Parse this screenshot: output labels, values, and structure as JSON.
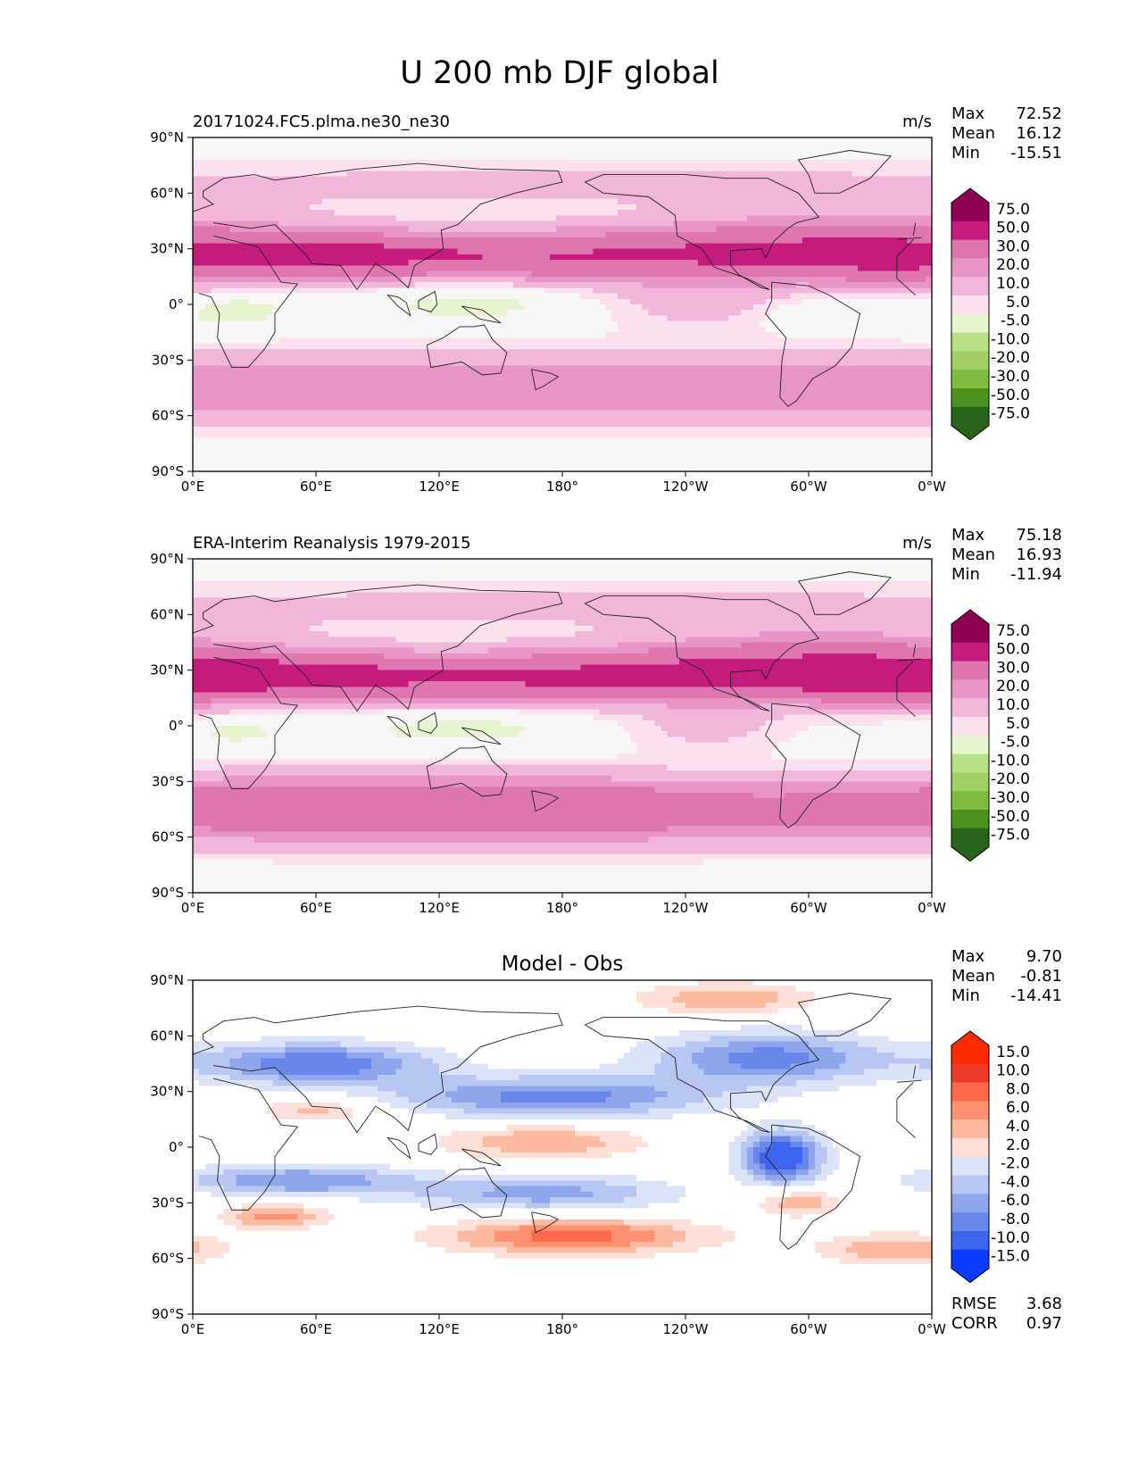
{
  "figure_title": "U 200 mb DJF global",
  "colors": {
    "seq_pos": [
      "#f7f7f7",
      "#fde0ef",
      "#f1b6da",
      "#e795c5",
      "#de77ae",
      "#c51b7d",
      "#8e0152"
    ],
    "seq_neg": [
      "#f7f7f7",
      "#e6f5d0",
      "#b8e186",
      "#a0cf67",
      "#7fbc41",
      "#4d9221",
      "#276419"
    ],
    "div_pos": [
      "#ffffff",
      "#fee0d8",
      "#fcbba1",
      "#fc9272",
      "#fb6a4a",
      "#ef3b2c",
      "#ff2a00"
    ],
    "div_neg": [
      "#ffffff",
      "#dbe3f8",
      "#b7c7f2",
      "#8fa6ec",
      "#6788ea",
      "#3f65ee",
      "#0a3cff"
    ]
  },
  "chart_data": [
    {
      "type": "contour-map",
      "title_left": "20171024.FC5.plma.ne30_ne30",
      "title_center": "",
      "units": "m/s",
      "stats": [
        {
          "label": "Max",
          "value": "72.52"
        },
        {
          "label": "Mean",
          "value": "16.12"
        },
        {
          "label": "Min",
          "value": "-15.51"
        }
      ],
      "extra_stats": [],
      "colorbar": {
        "levels": [
          "75.0",
          "50.0",
          "30.0",
          "20.0",
          "10.0",
          "5.0",
          "-5.0",
          "-10.0",
          "-20.0",
          "-30.0",
          "-50.0",
          "-75.0"
        ],
        "palette": "seq"
      },
      "xticks": [
        "0°E",
        "60°E",
        "120°E",
        "180°",
        "120°W",
        "60°W",
        "0°W"
      ],
      "yticks": [
        "90°N",
        "60°N",
        "30°N",
        "0°",
        "30°S",
        "60°S",
        "90°S"
      ],
      "xlim": [
        0,
        360
      ],
      "ylim": [
        -90,
        90
      ],
      "features": [
        {
          "lon": 180,
          "lat": 26,
          "sl": 200,
          "sa": 10,
          "amp": 48,
          "sign": 1
        },
        {
          "lon": 55,
          "lat": 27,
          "sl": 45,
          "sa": 7,
          "amp": 16,
          "sign": 1
        },
        {
          "lon": 320,
          "lat": 37,
          "sl": 70,
          "sa": 12,
          "amp": 22,
          "sign": 1
        },
        {
          "lon": 345,
          "lat": 18,
          "sl": 30,
          "sa": 10,
          "amp": 14,
          "sign": 1
        },
        {
          "lon": 180,
          "lat": -45,
          "sl": 360,
          "sa": 14,
          "amp": 30,
          "sign": 1
        },
        {
          "lon": 20,
          "lat": -3,
          "sl": 18,
          "sa": 7,
          "amp": 11,
          "sign": -1
        },
        {
          "lon": 135,
          "lat": 2,
          "sl": 35,
          "sa": 8,
          "amp": 10,
          "sign": -1
        },
        {
          "lon": 305,
          "lat": -5,
          "sl": 22,
          "sa": 6,
          "amp": 8,
          "sign": -1
        },
        {
          "lon": 250,
          "lat": 0,
          "sl": 35,
          "sa": 10,
          "amp": 14,
          "sign": 1
        },
        {
          "lon": 180,
          "lat": 65,
          "sl": 360,
          "sa": 10,
          "amp": 12,
          "sign": 1
        }
      ]
    },
    {
      "type": "contour-map",
      "title_left": "ERA-Interim Reanalysis 1979-2015",
      "title_center": "",
      "units": "m/s",
      "stats": [
        {
          "label": "Max",
          "value": "75.18"
        },
        {
          "label": "Mean",
          "value": "16.93"
        },
        {
          "label": "Min",
          "value": "-11.94"
        }
      ],
      "extra_stats": [],
      "colorbar": {
        "levels": [
          "75.0",
          "50.0",
          "30.0",
          "20.0",
          "10.0",
          "5.0",
          "-5.0",
          "-10.0",
          "-20.0",
          "-30.0",
          "-50.0",
          "-75.0"
        ],
        "palette": "seq"
      },
      "xticks": [
        "0°E",
        "60°E",
        "120°E",
        "180°",
        "120°W",
        "60°W",
        "0°W"
      ],
      "yticks": [
        "90°N",
        "60°N",
        "30°N",
        "0°",
        "30°S",
        "60°S",
        "90°S"
      ],
      "xlim": [
        0,
        360
      ],
      "ylim": [
        -90,
        90
      ],
      "features": [
        {
          "lon": 185,
          "lat": 26,
          "sl": 200,
          "sa": 10,
          "amp": 52,
          "sign": 1
        },
        {
          "lon": 40,
          "lat": 27,
          "sl": 40,
          "sa": 7,
          "amp": 18,
          "sign": 1
        },
        {
          "lon": 310,
          "lat": 37,
          "sl": 70,
          "sa": 12,
          "amp": 26,
          "sign": 1
        },
        {
          "lon": 345,
          "lat": 20,
          "sl": 30,
          "sa": 10,
          "amp": 16,
          "sign": 1
        },
        {
          "lon": 100,
          "lat": -42,
          "sl": 150,
          "sa": 12,
          "amp": 26,
          "sign": 1
        },
        {
          "lon": 180,
          "lat": -48,
          "sl": 360,
          "sa": 14,
          "amp": 24,
          "sign": 1
        },
        {
          "lon": 20,
          "lat": -3,
          "sl": 18,
          "sa": 6,
          "amp": 8,
          "sign": -1
        },
        {
          "lon": 130,
          "lat": 0,
          "sl": 40,
          "sa": 8,
          "amp": 9,
          "sign": -1
        },
        {
          "lon": 250,
          "lat": -2,
          "sl": 30,
          "sa": 9,
          "amp": 12,
          "sign": 1
        },
        {
          "lon": 180,
          "lat": 65,
          "sl": 360,
          "sa": 10,
          "amp": 12,
          "sign": 1
        }
      ]
    },
    {
      "type": "contour-map",
      "title_left": "",
      "title_center": "Model - Obs",
      "units": "",
      "stats": [
        {
          "label": "Max",
          "value": "9.70"
        },
        {
          "label": "Mean",
          "value": "-0.81"
        },
        {
          "label": "Min",
          "value": "-14.41"
        }
      ],
      "extra_stats": [
        {
          "label": "RMSE",
          "value": "3.68"
        },
        {
          "label": "CORR",
          "value": "0.97"
        }
      ],
      "colorbar": {
        "levels": [
          "15.0",
          "10.0",
          "8.0",
          "6.0",
          "4.0",
          "2.0",
          "-2.0",
          "-4.0",
          "-6.0",
          "-8.0",
          "-10.0",
          "-15.0"
        ],
        "palette": "div"
      },
      "xticks": [
        "0°E",
        "60°E",
        "120°E",
        "180°",
        "120°W",
        "60°W",
        "0°W"
      ],
      "yticks": [
        "90°N",
        "60°N",
        "30°N",
        "0°",
        "30°S",
        "60°S",
        "90°S"
      ],
      "xlim": [
        0,
        360
      ],
      "ylim": [
        -90,
        90
      ],
      "features": [
        {
          "lon": 60,
          "lat": 45,
          "sl": 40,
          "sa": 8,
          "amp": 10,
          "sign": -1
        },
        {
          "lon": 175,
          "lat": 27,
          "sl": 55,
          "sa": 8,
          "amp": 9,
          "sign": -1
        },
        {
          "lon": 280,
          "lat": 48,
          "sl": 40,
          "sa": 10,
          "amp": 9,
          "sign": -1
        },
        {
          "lon": 287,
          "lat": -5,
          "sl": 14,
          "sa": 10,
          "amp": 13,
          "sign": -1
        },
        {
          "lon": 50,
          "lat": -18,
          "sl": 40,
          "sa": 6,
          "amp": 8,
          "sign": -1
        },
        {
          "lon": 170,
          "lat": -25,
          "sl": 45,
          "sa": 7,
          "amp": 7,
          "sign": -1
        },
        {
          "lon": 185,
          "lat": -48,
          "sl": 45,
          "sa": 7,
          "amp": 9,
          "sign": 1
        },
        {
          "lon": 170,
          "lat": 3,
          "sl": 35,
          "sa": 7,
          "amp": 6,
          "sign": 1
        },
        {
          "lon": 40,
          "lat": -37,
          "sl": 18,
          "sa": 5,
          "amp": 7,
          "sign": 1
        },
        {
          "lon": 295,
          "lat": -30,
          "sl": 15,
          "sa": 5,
          "amp": 6,
          "sign": 1
        },
        {
          "lon": 342,
          "lat": -55,
          "sl": 25,
          "sa": 6,
          "amp": 6,
          "sign": 1
        },
        {
          "lon": 60,
          "lat": 20,
          "sl": 20,
          "sa": 5,
          "amp": 5,
          "sign": 1
        },
        {
          "lon": 260,
          "lat": 80,
          "sl": 30,
          "sa": 6,
          "amp": 6,
          "sign": 1
        }
      ]
    }
  ]
}
